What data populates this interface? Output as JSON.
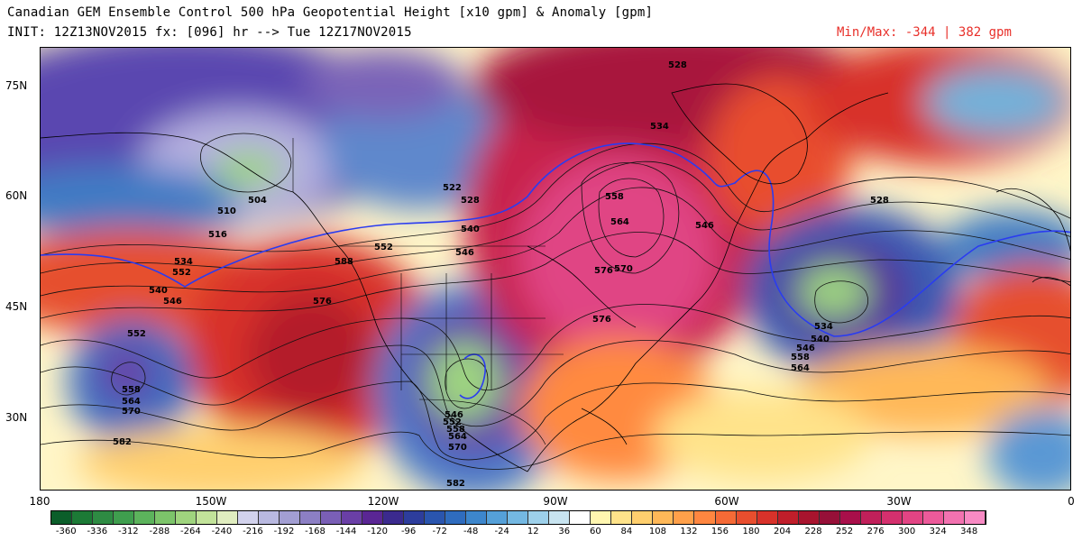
{
  "header": {
    "title": "Canadian GEM Ensemble Control 500 hPa Geopotential Height [x10 gpm] & Anomaly [gpm]",
    "init_line": "INIT: 12Z13NOV2015 fx: [096] hr --> Tue 12Z17NOV2015",
    "minmax_label": "Min/Max:",
    "min_value": "-344 |",
    "max_value": "382 gpm"
  },
  "axes": {
    "lat_labels": [
      "75N",
      "60N",
      "45N",
      "30N"
    ],
    "lon_labels": [
      "180",
      "150W",
      "120W",
      "90W",
      "60W",
      "30W",
      "0"
    ]
  },
  "contour_labels": [
    "528",
    "534",
    "558",
    "564",
    "570",
    "576",
    "546",
    "552",
    "540",
    "522",
    "516",
    "510",
    "504",
    "582",
    "588",
    "534",
    "540",
    "546",
    "558",
    "564",
    "528",
    "546",
    "552",
    "558",
    "564",
    "570",
    "582",
    "564",
    "552",
    "546",
    "540",
    "552",
    "558",
    "546",
    "528",
    "534",
    "570",
    "576",
    "576"
  ],
  "colorbar": {
    "colors": [
      "#0b5e2a",
      "#1c7a36",
      "#2e8b43",
      "#3f9e4e",
      "#5cb35c",
      "#7cc46a",
      "#9fd47e",
      "#c2e39a",
      "#e0edc0",
      "#d2d2ec",
      "#b9b9e0",
      "#a29ed2",
      "#8c7fc4",
      "#7a5fb6",
      "#6a3fa6",
      "#5a2694",
      "#3b2a8e",
      "#2d3d9c",
      "#2a55ae",
      "#2f6cbe",
      "#3d86cc",
      "#55a0d8",
      "#74b8e2",
      "#9dd0ea",
      "#c8e4f0",
      "#ffffff",
      "#fff6b0",
      "#ffe38a",
      "#ffcf6e",
      "#ffb858",
      "#ffa04a",
      "#ff8640",
      "#f56a36",
      "#e84e2e",
      "#d8322a",
      "#c01e2a",
      "#a8142e",
      "#961038",
      "#a80f4a",
      "#c0205a",
      "#d4306e",
      "#e24484",
      "#ec5a9a",
      "#f272b0",
      "#f88ac4"
    ],
    "labels": [
      "-360",
      "-336",
      "-312",
      "-288",
      "-264",
      "-240",
      "-216",
      "-192",
      "-168",
      "-144",
      "-120",
      "-96",
      "-72",
      "-48",
      "-24",
      "12",
      "36",
      "60",
      "84",
      "108",
      "132",
      "156",
      "180",
      "204",
      "228",
      "252",
      "276",
      "300",
      "324",
      "348"
    ]
  }
}
